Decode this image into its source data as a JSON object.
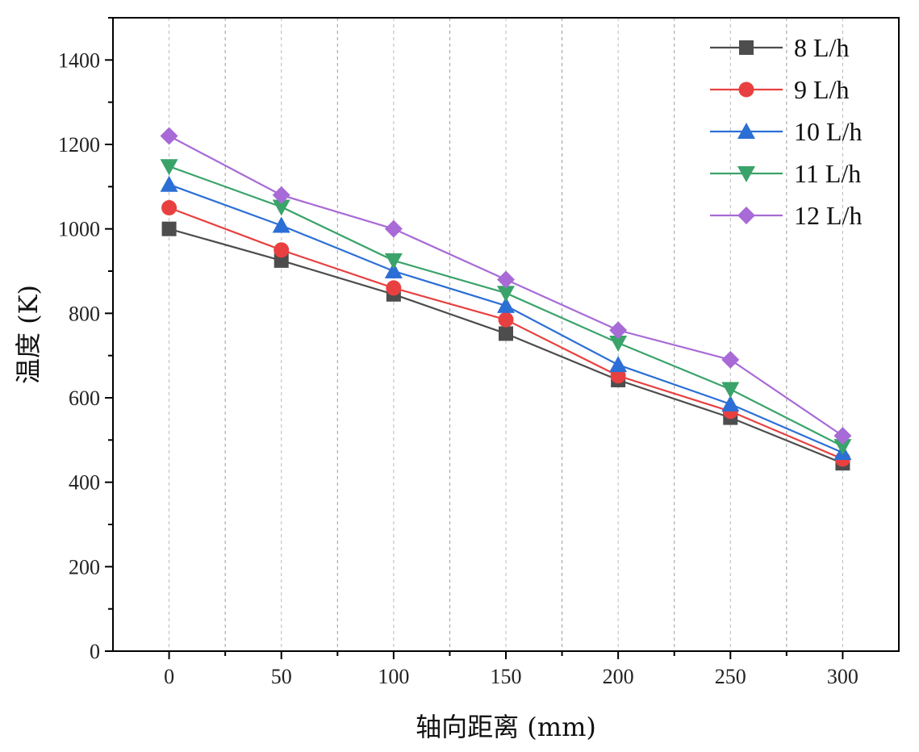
{
  "chart_data": {
    "type": "line",
    "title": "",
    "xlabel": "轴向距离 (mm)",
    "ylabel": "温度 (K)",
    "x": [
      0,
      50,
      100,
      150,
      200,
      250,
      300
    ],
    "x_ticks": [
      "0",
      "50",
      "100",
      "150",
      "200",
      "250",
      "300"
    ],
    "y_ticks": [
      "0",
      "200",
      "400",
      "600",
      "800",
      "1000",
      "1200",
      "1400"
    ],
    "xlim": [
      -25,
      325
    ],
    "ylim": [
      0,
      1500
    ],
    "grid": "vertical dashed",
    "legend_position": "top-right",
    "series": [
      {
        "name": "8 L/h",
        "color": "#4d4d4d",
        "marker": "square",
        "values": [
          1000,
          925,
          845,
          752,
          642,
          553,
          445
        ]
      },
      {
        "name": "9 L/h",
        "color": "#e84040",
        "marker": "circle",
        "values": [
          1050,
          950,
          860,
          785,
          652,
          568,
          455
        ]
      },
      {
        "name": "10 L/h",
        "color": "#2b6fd6",
        "marker": "triangle-up",
        "values": [
          1105,
          1008,
          900,
          818,
          678,
          585,
          470
        ]
      },
      {
        "name": "11 L/h",
        "color": "#3aa36a",
        "marker": "triangle-down",
        "values": [
          1148,
          1052,
          925,
          848,
          730,
          620,
          485
        ]
      },
      {
        "name": "12 L/h",
        "color": "#a86ad6",
        "marker": "diamond",
        "values": [
          1220,
          1080,
          1000,
          880,
          760,
          690,
          510
        ]
      }
    ]
  }
}
